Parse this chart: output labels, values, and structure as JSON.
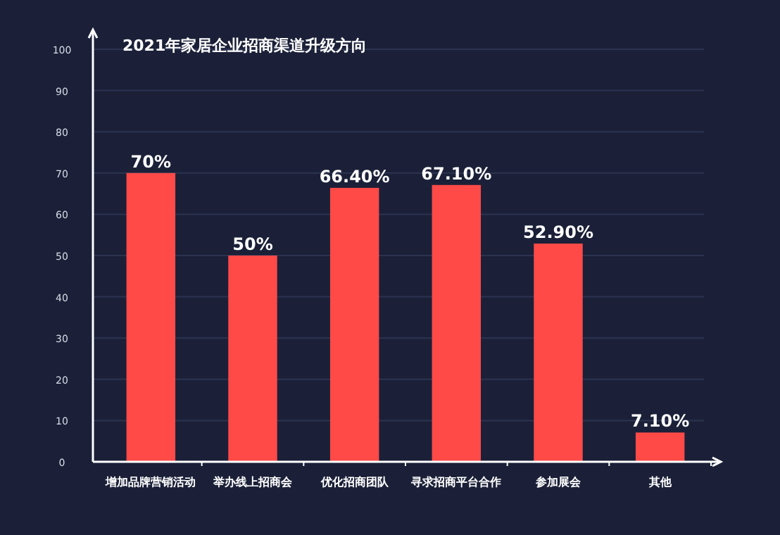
{
  "chart_data": {
    "type": "bar",
    "title": "2021年家居企业招商渠道升级方向",
    "categories": [
      "增加品牌营销活动",
      "举办线上招商会",
      "优化招商团队",
      "寻求招商平台合作",
      "参加展会",
      "其他"
    ],
    "values": [
      70,
      50,
      66.4,
      67.1,
      52.9,
      7.1
    ],
    "value_labels": [
      "70%",
      "50%",
      "66.40%",
      "67.10%",
      "52.90%",
      "7.10%"
    ],
    "color": "#ff4a48",
    "ylim": [
      0,
      100
    ],
    "yticks": [
      0,
      10,
      20,
      30,
      40,
      50,
      60,
      70,
      80,
      90,
      100
    ],
    "grid": "y"
  }
}
